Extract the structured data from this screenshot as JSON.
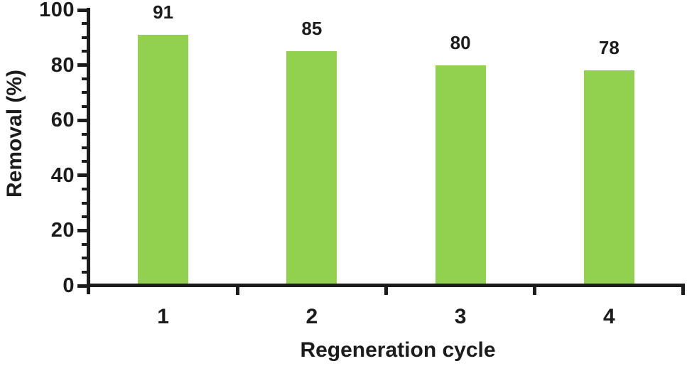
{
  "chart_data": {
    "type": "bar",
    "title": "",
    "categories": [
      "1",
      "2",
      "3",
      "4"
    ],
    "values": [
      91,
      85,
      80,
      78
    ],
    "data_labels": [
      "91",
      "85",
      "80",
      "78"
    ],
    "xlabel": "Regeneration cycle",
    "ylabel": "Removal (%)",
    "ylim": [
      0,
      100
    ],
    "ytick_labels": [
      "0",
      "20",
      "40",
      "60",
      "80",
      "100"
    ],
    "ytick_interval_major": 20,
    "ytick_interval_minor": 5,
    "grid": false,
    "legend": "none",
    "bar_color": "#92D050",
    "axis_color": "#1c1c1c",
    "text_color": "#1c1c1c",
    "background_color": "#ffffff"
  }
}
